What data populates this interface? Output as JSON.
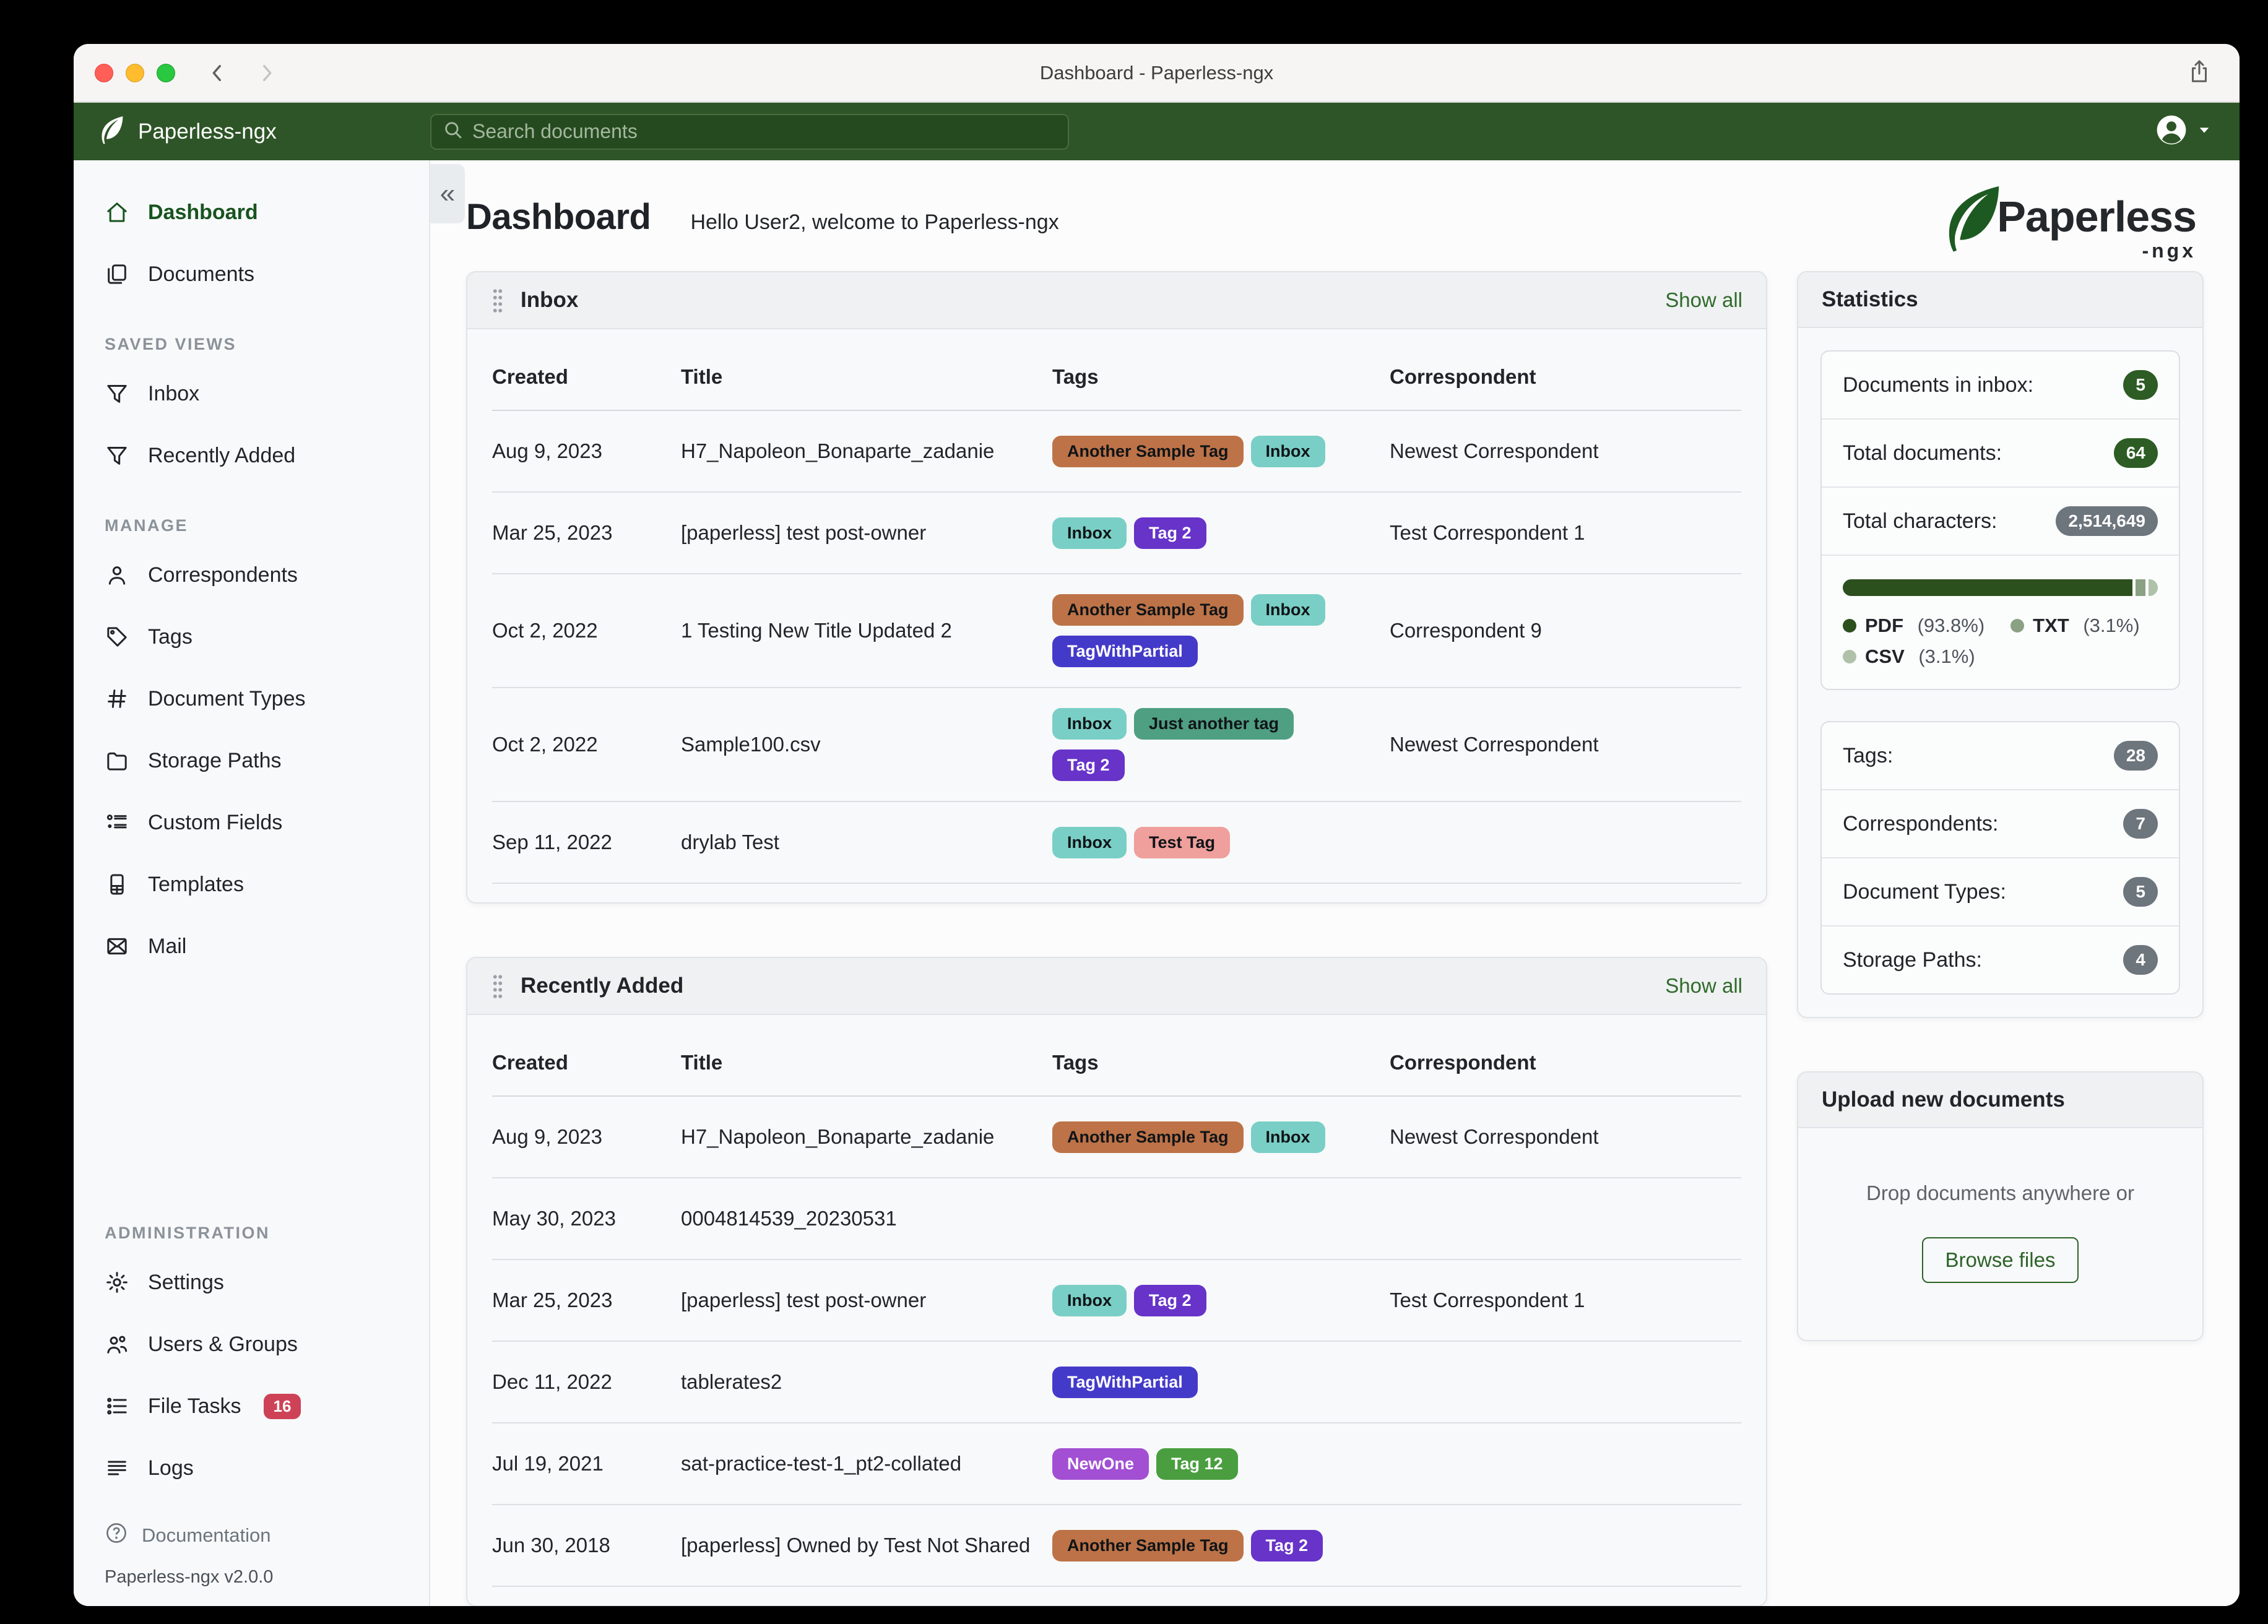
{
  "window": {
    "title": "Dashboard - Paperless-ngx"
  },
  "appbar": {
    "brand": "Paperless-ngx",
    "search_placeholder": "Search documents"
  },
  "sidebar": {
    "groups": [
      {
        "heading": "",
        "area": "top",
        "items": [
          {
            "label": "Dashboard",
            "icon": "home",
            "active": true
          },
          {
            "label": "Documents",
            "icon": "documents"
          }
        ]
      },
      {
        "heading": "SAVED VIEWS",
        "area": "top",
        "items": [
          {
            "label": "Inbox",
            "icon": "filter"
          },
          {
            "label": "Recently Added",
            "icon": "filter"
          }
        ]
      },
      {
        "heading": "MANAGE",
        "area": "top",
        "items": [
          {
            "label": "Correspondents",
            "icon": "person"
          },
          {
            "label": "Tags",
            "icon": "tag"
          },
          {
            "label": "Document Types",
            "icon": "hash"
          },
          {
            "label": "Storage Paths",
            "icon": "folder"
          },
          {
            "label": "Custom Fields",
            "icon": "fields"
          },
          {
            "label": "Templates",
            "icon": "file"
          },
          {
            "label": "Mail",
            "icon": "envelope"
          }
        ]
      },
      {
        "heading": "ADMINISTRATION",
        "area": "bottom",
        "items": [
          {
            "label": "Settings",
            "icon": "gear"
          },
          {
            "label": "Users & Groups",
            "icon": "people"
          },
          {
            "label": "File Tasks",
            "icon": "tasks",
            "badge": "16"
          },
          {
            "label": "Logs",
            "icon": "logs"
          }
        ]
      }
    ],
    "footer": {
      "documentation": "Documentation",
      "version": "Paperless-ngx v2.0.0"
    }
  },
  "page": {
    "title": "Dashboard",
    "greeting": "Hello User2, welcome to Paperless-ngx",
    "logo_word": "Paperless",
    "logo_suffix": "-ngx"
  },
  "tables": [
    {
      "title": "Inbox",
      "show_all": "Show all",
      "columns": [
        "Created",
        "Title",
        "Tags",
        "Correspondent"
      ],
      "rows": [
        {
          "created": "Aug 9, 2023",
          "title": "H7_Napoleon_Bonaparte_zadanie",
          "tags": [
            {
              "label": "Another Sample Tag",
              "bg": "#bd7347",
              "fg": "#101418"
            },
            {
              "label": "Inbox",
              "bg": "#79cfc5",
              "fg": "#101418"
            }
          ],
          "correspondent": "Newest Correspondent"
        },
        {
          "created": "Mar 25, 2023",
          "title": "[paperless] test post-owner",
          "tags": [
            {
              "label": "Inbox",
              "bg": "#79cfc5",
              "fg": "#101418"
            },
            {
              "label": "Tag 2",
              "bg": "#6733c9",
              "fg": "#ffffff"
            }
          ],
          "correspondent": "Test Correspondent 1"
        },
        {
          "created": "Oct 2, 2022",
          "title": "1 Testing New Title Updated 2",
          "tags": [
            {
              "label": "Another Sample Tag",
              "bg": "#bd7347",
              "fg": "#101418"
            },
            {
              "label": "Inbox",
              "bg": "#79cfc5",
              "fg": "#101418"
            },
            {
              "label": "TagWithPartial",
              "bg": "#443ac9",
              "fg": "#ffffff"
            }
          ],
          "correspondent": "Correspondent 9"
        },
        {
          "created": "Oct 2, 2022",
          "title": "Sample100.csv",
          "tags": [
            {
              "label": "Inbox",
              "bg": "#79cfc5",
              "fg": "#101418"
            },
            {
              "label": "Just another tag",
              "bg": "#4f9f82",
              "fg": "#101418"
            },
            {
              "label": "Tag 2",
              "bg": "#6733c9",
              "fg": "#ffffff"
            }
          ],
          "correspondent": "Newest Correspondent"
        },
        {
          "created": "Sep 11, 2022",
          "title": "drylab Test",
          "tags": [
            {
              "label": "Inbox",
              "bg": "#79cfc5",
              "fg": "#101418"
            },
            {
              "label": "Test Tag",
              "bg": "#ef9f9c",
              "fg": "#101418"
            }
          ],
          "correspondent": ""
        }
      ]
    },
    {
      "title": "Recently Added",
      "show_all": "Show all",
      "columns": [
        "Created",
        "Title",
        "Tags",
        "Correspondent"
      ],
      "rows": [
        {
          "created": "Aug 9, 2023",
          "title": "H7_Napoleon_Bonaparte_zadanie",
          "tags": [
            {
              "label": "Another Sample Tag",
              "bg": "#bd7347",
              "fg": "#101418"
            },
            {
              "label": "Inbox",
              "bg": "#79cfc5",
              "fg": "#101418"
            }
          ],
          "correspondent": "Newest Correspondent"
        },
        {
          "created": "May 30, 2023",
          "title": "0004814539_20230531",
          "tags": [],
          "correspondent": ""
        },
        {
          "created": "Mar 25, 2023",
          "title": "[paperless] test post-owner",
          "tags": [
            {
              "label": "Inbox",
              "bg": "#79cfc5",
              "fg": "#101418"
            },
            {
              "label": "Tag 2",
              "bg": "#6733c9",
              "fg": "#ffffff"
            }
          ],
          "correspondent": "Test Correspondent 1"
        },
        {
          "created": "Dec 11, 2022",
          "title": "tablerates2",
          "tags": [
            {
              "label": "TagWithPartial",
              "bg": "#443ac9",
              "fg": "#ffffff"
            }
          ],
          "correspondent": ""
        },
        {
          "created": "Jul 19, 2021",
          "title": "sat-practice-test-1_pt2-collated",
          "tags": [
            {
              "label": "NewOne",
              "bg": "#a24fd4",
              "fg": "#ffffff"
            },
            {
              "label": "Tag 12",
              "bg": "#4a9e3f",
              "fg": "#ffffff"
            }
          ],
          "correspondent": ""
        },
        {
          "created": "Jun 30, 2018",
          "title": "[paperless] Owned by Test Not Shared",
          "tags": [
            {
              "label": "Another Sample Tag",
              "bg": "#bd7347",
              "fg": "#101418"
            },
            {
              "label": "Tag 2",
              "bg": "#6733c9",
              "fg": "#ffffff"
            }
          ],
          "correspondent": ""
        }
      ]
    }
  ],
  "statistics": {
    "title": "Statistics",
    "rows_primary": [
      {
        "label": "Documents in inbox:",
        "value": "5",
        "badge": "green"
      },
      {
        "label": "Total documents:",
        "value": "64",
        "badge": "green"
      },
      {
        "label": "Total characters:",
        "value": "2,514,649",
        "badge": "gray"
      }
    ],
    "file_types": [
      {
        "label": "PDF",
        "pct": "(93.8%)",
        "value": 93.8,
        "color": "#2c4f1e"
      },
      {
        "label": "TXT",
        "pct": "(3.1%)",
        "value": 3.1,
        "color": "#8aa183"
      },
      {
        "label": "CSV",
        "pct": "(3.1%)",
        "value": 3.1,
        "color": "#b0c1aa"
      }
    ],
    "rows_secondary": [
      {
        "label": "Tags:",
        "value": "28",
        "badge": "gray"
      },
      {
        "label": "Correspondents:",
        "value": "7",
        "badge": "gray"
      },
      {
        "label": "Document Types:",
        "value": "5",
        "badge": "gray"
      },
      {
        "label": "Storage Paths:",
        "value": "4",
        "badge": "gray"
      }
    ]
  },
  "upload": {
    "title": "Upload new documents",
    "hint": "Drop documents anywhere or",
    "button": "Browse files"
  }
}
